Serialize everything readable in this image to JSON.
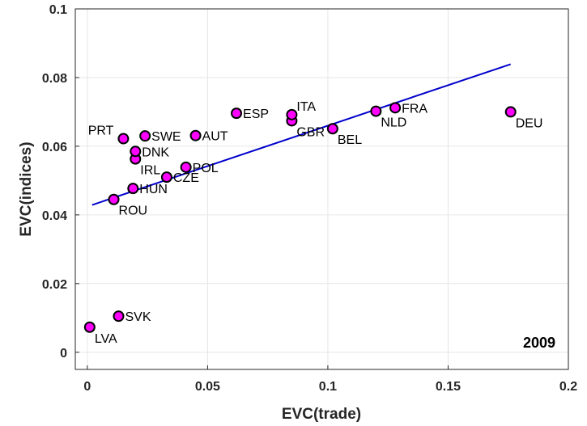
{
  "chart_data": {
    "type": "scatter",
    "title": "",
    "annotation": "2009",
    "xlabel": "EVC(trade)",
    "ylabel": "EVC(indices)",
    "xlim": [
      -0.005,
      0.2
    ],
    "ylim": [
      -0.005,
      0.1
    ],
    "xticks": [
      0,
      0.05,
      0.1,
      0.15,
      0.2
    ],
    "xtick_labels": [
      "0",
      "0.05",
      "0.1",
      "0.15",
      "0.2"
    ],
    "yticks": [
      0,
      0.02,
      0.04,
      0.06,
      0.08,
      0.1
    ],
    "ytick_labels": [
      "0",
      "0.02",
      "0.04",
      "0.06",
      "0.08",
      "0.1"
    ],
    "grid": true,
    "marker_color": "#ff00ff",
    "marker_edge": "#000000",
    "fit_color": "#0000cc",
    "fit_line": {
      "x": [
        0.002,
        0.176
      ],
      "y": [
        0.0429,
        0.0839
      ]
    },
    "points": [
      {
        "label": "LVA",
        "x": 0.001,
        "y": 0.0073,
        "anchor": "below-right"
      },
      {
        "label": "SVK",
        "x": 0.013,
        "y": 0.0105,
        "anchor": "right"
      },
      {
        "label": "ROU",
        "x": 0.011,
        "y": 0.0445,
        "anchor": "below-right"
      },
      {
        "label": "HUN",
        "x": 0.019,
        "y": 0.0477,
        "anchor": "right"
      },
      {
        "label": "IRL",
        "x": 0.02,
        "y": 0.0563,
        "anchor": "below-right"
      },
      {
        "label": "DNK",
        "x": 0.02,
        "y": 0.0585,
        "anchor": "right"
      },
      {
        "label": "PRT",
        "x": 0.015,
        "y": 0.0622,
        "anchor": "above-left"
      },
      {
        "label": "SWE",
        "x": 0.024,
        "y": 0.063,
        "anchor": "right"
      },
      {
        "label": "CZE",
        "x": 0.033,
        "y": 0.051,
        "anchor": "right"
      },
      {
        "label": "POL",
        "x": 0.041,
        "y": 0.0539,
        "anchor": "right"
      },
      {
        "label": "AUT",
        "x": 0.045,
        "y": 0.0631,
        "anchor": "right"
      },
      {
        "label": "ESP",
        "x": 0.062,
        "y": 0.0696,
        "anchor": "right"
      },
      {
        "label": "GBR",
        "x": 0.085,
        "y": 0.0674,
        "anchor": "below-right"
      },
      {
        "label": "ITA",
        "x": 0.085,
        "y": 0.0692,
        "anchor": "above-right"
      },
      {
        "label": "BEL",
        "x": 0.102,
        "y": 0.0651,
        "anchor": "below-right"
      },
      {
        "label": "NLD",
        "x": 0.12,
        "y": 0.0702,
        "anchor": "below-right"
      },
      {
        "label": "FRA",
        "x": 0.128,
        "y": 0.0712,
        "anchor": "right"
      },
      {
        "label": "DEU",
        "x": 0.176,
        "y": 0.07,
        "anchor": "below-right"
      }
    ]
  }
}
